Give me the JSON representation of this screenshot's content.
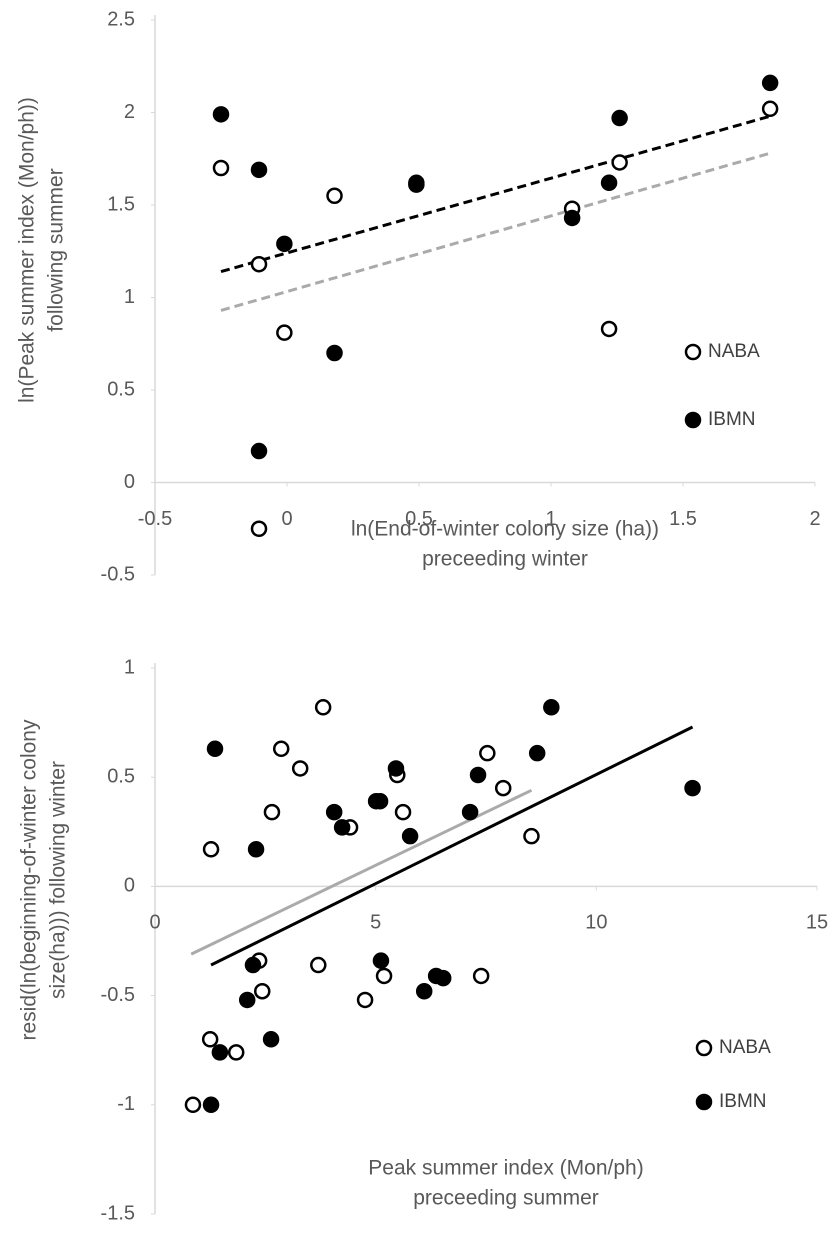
{
  "chart_data": [
    {
      "type": "scatter",
      "y_label": [
        "ln(Peak summer index (Mon/ph))",
        "following summer"
      ],
      "x_label": [
        "ln(End-of-winter colony size (ha))",
        "preceeding winter"
      ],
      "xlim": [
        -0.5,
        2
      ],
      "ylim": [
        -0.5,
        2.5
      ],
      "xticks": [
        -0.5,
        0,
        0.5,
        1,
        1.5,
        2
      ],
      "yticks": [
        -0.5,
        0,
        0.5,
        1,
        1.5,
        2,
        2.5
      ],
      "legend": "lower right",
      "series": [
        {
          "name": "NABA",
          "color": "#000000",
          "marker": "open",
          "x": [
            -0.25,
            -0.106,
            -0.01,
            0.18,
            -0.106,
            0.49,
            1.08,
            1.22,
            1.26,
            1.83
          ],
          "y": [
            1.7,
            1.18,
            0.81,
            1.55,
            -0.25,
            1.62,
            1.48,
            0.83,
            1.73,
            2.02
          ]
        },
        {
          "name": "IBMN",
          "color": "#000000",
          "marker": "filled",
          "x": [
            -0.25,
            -0.106,
            -0.01,
            0.18,
            -0.106,
            0.49,
            1.08,
            1.22,
            1.26,
            1.83
          ],
          "y": [
            1.99,
            1.69,
            1.29,
            0.7,
            0.17,
            1.61,
            1.43,
            1.62,
            1.97,
            2.16
          ]
        }
      ],
      "trendlines": [
        {
          "color": "#000000",
          "dash": true,
          "x": [
            -0.25,
            1.83
          ],
          "y": [
            1.14,
            1.98
          ]
        },
        {
          "color": "#aaaaaa",
          "dash": true,
          "x": [
            -0.25,
            1.83
          ],
          "y": [
            0.93,
            1.78
          ]
        }
      ]
    },
    {
      "type": "scatter",
      "y_label": [
        "resid(ln(beginning-of-winter colony",
        "size(ha))) following winter"
      ],
      "x_label": [
        "Peak summer index (Mon/ph)",
        "preceeding summer"
      ],
      "xlim": [
        0,
        15
      ],
      "ylim": [
        -1.5,
        1
      ],
      "xticks": [
        0,
        5,
        10,
        15
      ],
      "yticks": [
        -1.5,
        -1,
        -0.5,
        0,
        0.5,
        1
      ],
      "legend": "lower right",
      "series": [
        {
          "name": "NABA",
          "color": "#000000",
          "marker": "open",
          "x": [
            1.27,
            0.86,
            1.25,
            1.84,
            2.36,
            2.43,
            2.65,
            2.86,
            3.29,
            3.7,
            3.81,
            4.42,
            4.76,
            5.19,
            5.49,
            5.62,
            7.39,
            7.53,
            7.89,
            8.53
          ],
          "y": [
            0.17,
            -1.0,
            -0.7,
            -0.76,
            -0.34,
            -0.48,
            0.34,
            0.63,
            0.54,
            -0.36,
            0.82,
            0.27,
            -0.52,
            -0.41,
            0.51,
            0.34,
            -0.41,
            0.61,
            0.45,
            0.23
          ]
        },
        {
          "name": "IBMN",
          "color": "#000000",
          "marker": "filled",
          "x": [
            1.36,
            1.27,
            1.47,
            2.09,
            2.22,
            2.29,
            2.63,
            4.06,
            4.24,
            5.01,
            5.1,
            5.12,
            5.46,
            5.78,
            6.1,
            6.37,
            6.53,
            7.14,
            7.32,
            8.66,
            8.98,
            12.18
          ],
          "y": [
            0.63,
            -1.0,
            -0.76,
            -0.52,
            -0.36,
            0.17,
            -0.7,
            0.34,
            0.27,
            0.39,
            0.39,
            -0.34,
            0.54,
            0.23,
            -0.48,
            -0.41,
            -0.42,
            0.34,
            0.51,
            0.61,
            0.82,
            0.45
          ]
        }
      ],
      "trendlines": [
        {
          "color": "#000000",
          "dash": false,
          "x": [
            1.27,
            12.18
          ],
          "y": [
            -0.36,
            0.73
          ]
        },
        {
          "color": "#aaaaaa",
          "dash": false,
          "x": [
            0.82,
            8.53
          ],
          "y": [
            -0.31,
            0.44
          ]
        }
      ]
    }
  ]
}
